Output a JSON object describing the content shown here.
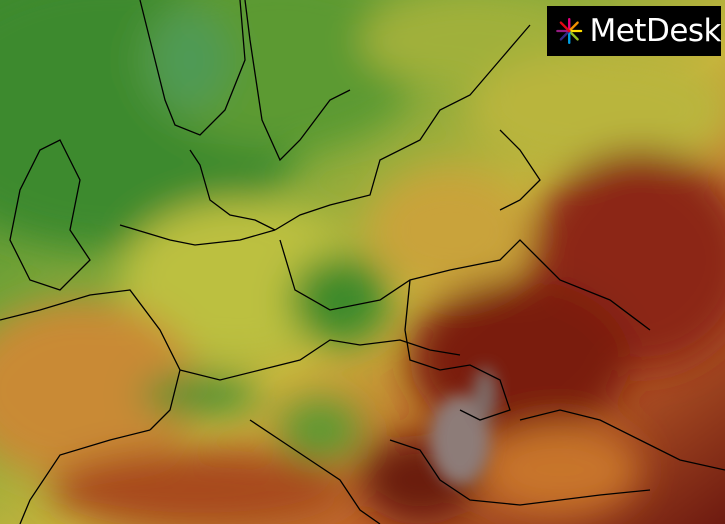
{
  "logo": {
    "text": "MetDesk"
  }
}
